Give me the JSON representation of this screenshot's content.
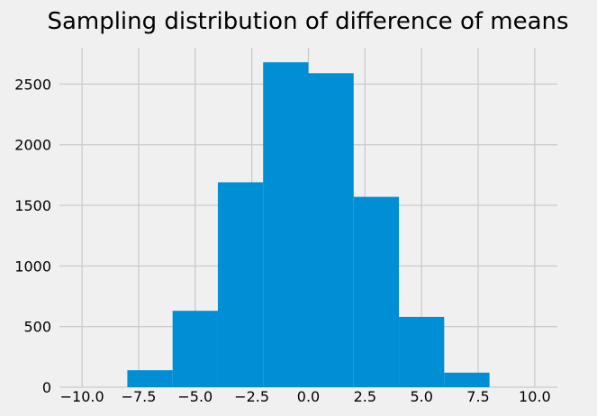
{
  "chart_data": {
    "type": "bar",
    "title": "Sampling distribution of difference of means",
    "xlabel": "",
    "ylabel": "",
    "grid": true,
    "legend": "none",
    "colors": {
      "bar": "#008fd5",
      "background": "#f0f0f0",
      "grid": "#cbcbcb"
    },
    "xlim": [
      -11,
      11
    ],
    "ylim": [
      0,
      2800
    ],
    "x_ticks": [
      -10,
      -7.5,
      -5,
      -2.5,
      0,
      2.5,
      5,
      7.5,
      10
    ],
    "x_tick_labels": [
      "−10.0",
      "−7.5",
      "−5.0",
      "−2.5",
      "0.0",
      "2.5",
      "5.0",
      "7.5",
      "10.0"
    ],
    "y_ticks": [
      0,
      500,
      1000,
      1500,
      2000,
      2500
    ],
    "y_tick_labels": [
      "0",
      "500",
      "1000",
      "1500",
      "2000",
      "2500"
    ],
    "bins": [
      {
        "x0": -8.0,
        "x1": -6.0,
        "value": 140
      },
      {
        "x0": -6.0,
        "x1": -4.0,
        "value": 630
      },
      {
        "x0": -4.0,
        "x1": -2.0,
        "value": 1690
      },
      {
        "x0": -2.0,
        "x1": 0.0,
        "value": 2680
      },
      {
        "x0": 0.0,
        "x1": 2.0,
        "value": 2590
      },
      {
        "x0": 2.0,
        "x1": 4.0,
        "value": 1570
      },
      {
        "x0": 4.0,
        "x1": 6.0,
        "value": 580
      },
      {
        "x0": 6.0,
        "x1": 8.0,
        "value": 120
      }
    ]
  }
}
